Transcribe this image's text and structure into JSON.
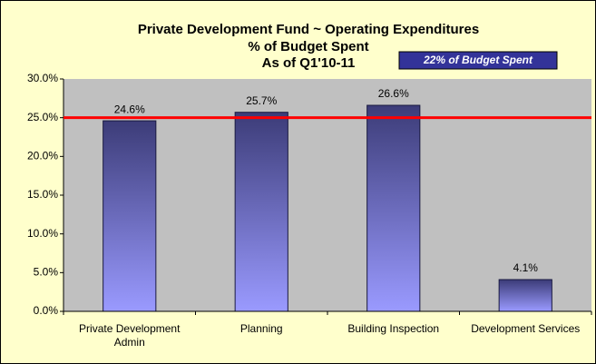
{
  "chart_data": {
    "type": "bar",
    "title_lines": [
      "Private Development Fund ~ Operating Expenditures",
      "% of Budget Spent",
      "As of Q1'10-11"
    ],
    "annotation": "22% of Budget Spent",
    "categories": [
      "Private Development Admin",
      "Planning",
      "Building Inspection",
      "Development Services"
    ],
    "values": [
      24.6,
      25.7,
      26.6,
      4.1
    ],
    "value_labels": [
      "24.6%",
      "25.7%",
      "26.6%",
      "4.1%"
    ],
    "reference_line": 25,
    "reference_color": "#ff0000",
    "ylim": [
      0,
      30
    ],
    "yticks": [
      {
        "value": 0,
        "label": "0.0%"
      },
      {
        "value": 5,
        "label": "5.0%"
      },
      {
        "value": 10,
        "label": "10.0%"
      },
      {
        "value": 15,
        "label": "15.0%"
      },
      {
        "value": 20,
        "label": "20.0%"
      },
      {
        "value": 25,
        "label": "25.0%"
      },
      {
        "value": 30,
        "label": "30.0%"
      }
    ],
    "grid": false
  }
}
